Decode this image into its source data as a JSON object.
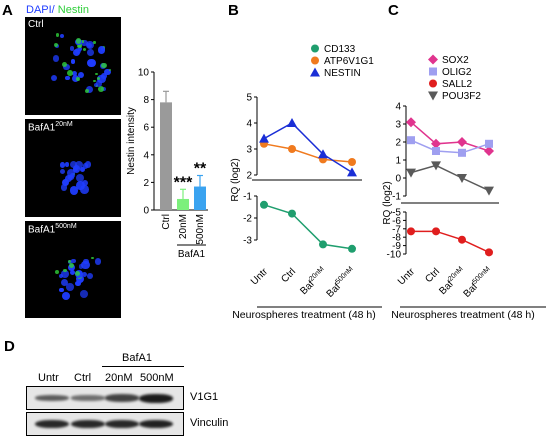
{
  "panelA": {
    "letter": "A",
    "stain_dapi": "DAPI/",
    "stain_nestin": " Nestin",
    "dapi_color": "#1f3dff",
    "nestin_color": "#2fcf3a",
    "images": [
      {
        "label": "Ctrl",
        "sup": ""
      },
      {
        "label": "BafA1",
        "sup": "20nM"
      },
      {
        "label": "BafA1",
        "sup": "500nM"
      }
    ],
    "bar_chart": {
      "type": "bar",
      "ylabel": "Nestin intensity",
      "ylim": [
        0,
        10
      ],
      "yticks": [
        0,
        2,
        4,
        6,
        8,
        10
      ],
      "categories": [
        "Ctrl",
        "20nM",
        "500nM"
      ],
      "values": [
        7.8,
        0.8,
        1.7
      ],
      "errors": [
        0.8,
        0.7,
        0.8
      ],
      "colors": [
        "#9a9a9a",
        "#7cf07c",
        "#3aa3f0"
      ],
      "significance": [
        "",
        "***",
        "**"
      ],
      "group_label": "BafA1"
    }
  },
  "chart_data": [
    {
      "type": "line",
      "panel": "B",
      "categories": [
        "Untr",
        "Ctrl",
        "Baf20nM",
        "Baf500nM"
      ],
      "tick_labels": [
        {
          "t": "Untr",
          "s": ""
        },
        {
          "t": "Ctrl",
          "s": ""
        },
        {
          "t": "Baf",
          "s": "20nM"
        },
        {
          "t": "Baf",
          "s": "500nM"
        }
      ],
      "ylabel": "RQ (log2)",
      "xlabel": "Neurospheres treatment (48 h)",
      "axis_break": true,
      "upper_yticks": [
        2,
        3,
        4,
        5
      ],
      "lower_yticks": [
        -1,
        -2,
        -3
      ],
      "series": [
        {
          "name": "CD133",
          "color": "#1f9e6e",
          "marker": "circle",
          "values": [
            -1.4,
            -1.8,
            -3.2,
            -3.4
          ]
        },
        {
          "name": "ATP6V1G1",
          "color": "#f07a1e",
          "marker": "circle",
          "values": [
            3.2,
            3.0,
            2.6,
            2.5
          ]
        },
        {
          "name": "NESTIN",
          "color": "#1a2ed6",
          "marker": "triangle",
          "values": [
            3.4,
            4.0,
            2.8,
            2.1
          ]
        }
      ]
    },
    {
      "type": "line",
      "panel": "C",
      "categories": [
        "Untr",
        "Ctrl",
        "Baf20nM",
        "Baf500nM"
      ],
      "tick_labels": [
        {
          "t": "Untr",
          "s": ""
        },
        {
          "t": "Ctrl",
          "s": ""
        },
        {
          "t": "Baf",
          "s": "20nM"
        },
        {
          "t": "Baf",
          "s": "500nM"
        }
      ],
      "ylabel": "RQ (log2)",
      "xlabel": "Neurospheres treatment (48 h)",
      "axis_break": true,
      "upper_yticks": [
        -1,
        0,
        1,
        2,
        3,
        4
      ],
      "lower_yticks": [
        -5,
        -6,
        -7,
        -8,
        -9,
        -10
      ],
      "series": [
        {
          "name": "SOX2",
          "color": "#e0348e",
          "marker": "diamond",
          "values": [
            3.1,
            1.9,
            2.0,
            1.5
          ]
        },
        {
          "name": "OLIG2",
          "color": "#9f9ff0",
          "marker": "square",
          "values": [
            2.1,
            1.5,
            1.4,
            1.9
          ]
        },
        {
          "name": "SALL2",
          "color": "#e01e1e",
          "marker": "circle",
          "values": [
            -7.3,
            -7.3,
            -8.3,
            -9.8
          ]
        },
        {
          "name": "POU3F2",
          "color": "#5a5a5a",
          "marker": "triangle-down",
          "values": [
            0.3,
            0.7,
            0.0,
            -0.7
          ]
        }
      ]
    }
  ],
  "panelB": {
    "letter": "B"
  },
  "panelC": {
    "letter": "C"
  },
  "panelD": {
    "letter": "D",
    "group_label": "BafA1",
    "lanes": [
      "Untr",
      "Ctrl",
      "20nM",
      "500nM"
    ],
    "rows": [
      {
        "label": "V1G1",
        "intensities": [
          0.5,
          0.35,
          0.7,
          1.0
        ]
      },
      {
        "label": "Vinculin",
        "intensities": [
          0.9,
          0.9,
          0.9,
          0.95
        ]
      }
    ]
  }
}
